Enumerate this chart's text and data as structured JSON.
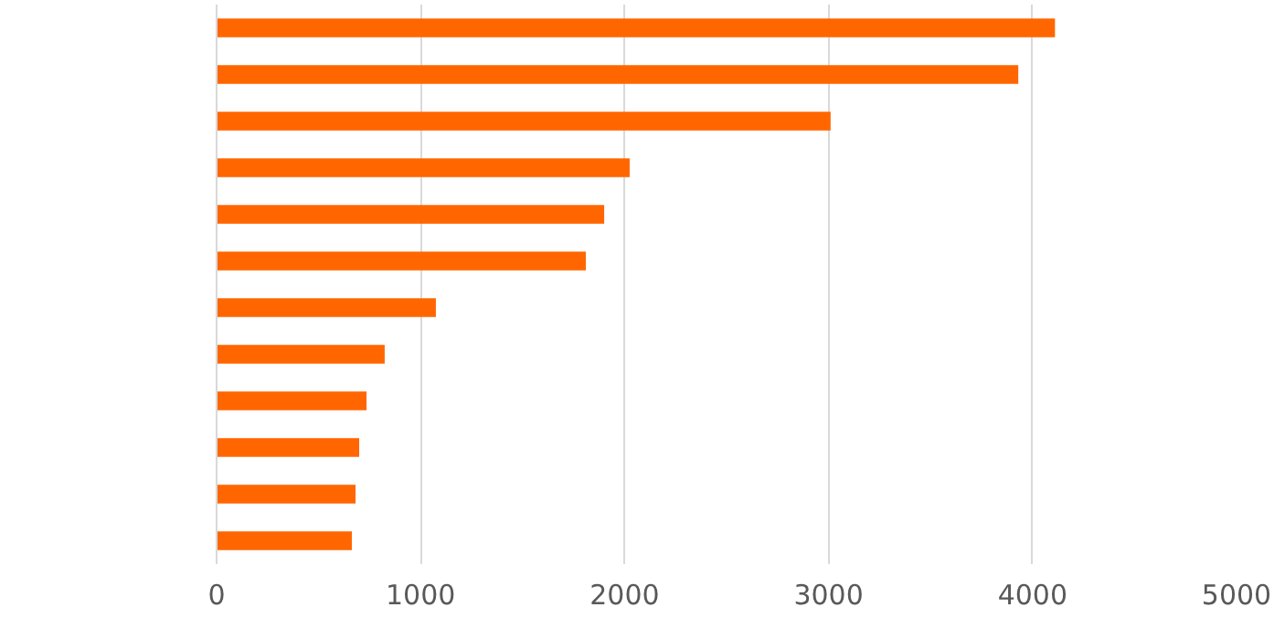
{
  "chart_data": {
    "type": "bar",
    "orientation": "horizontal",
    "categories": [
      null,
      null,
      null,
      null,
      null,
      null,
      null,
      null,
      null,
      null,
      null,
      null
    ],
    "values": [
      4110,
      3930,
      3010,
      2025,
      1900,
      1810,
      1075,
      824,
      735,
      699,
      681,
      663
    ],
    "color": "#ff6600",
    "xlim": [
      0,
      5000
    ],
    "xticks": [
      0,
      1000,
      2000,
      3000,
      4000,
      5000
    ],
    "grid": "x",
    "tick_labels": "x"
  }
}
